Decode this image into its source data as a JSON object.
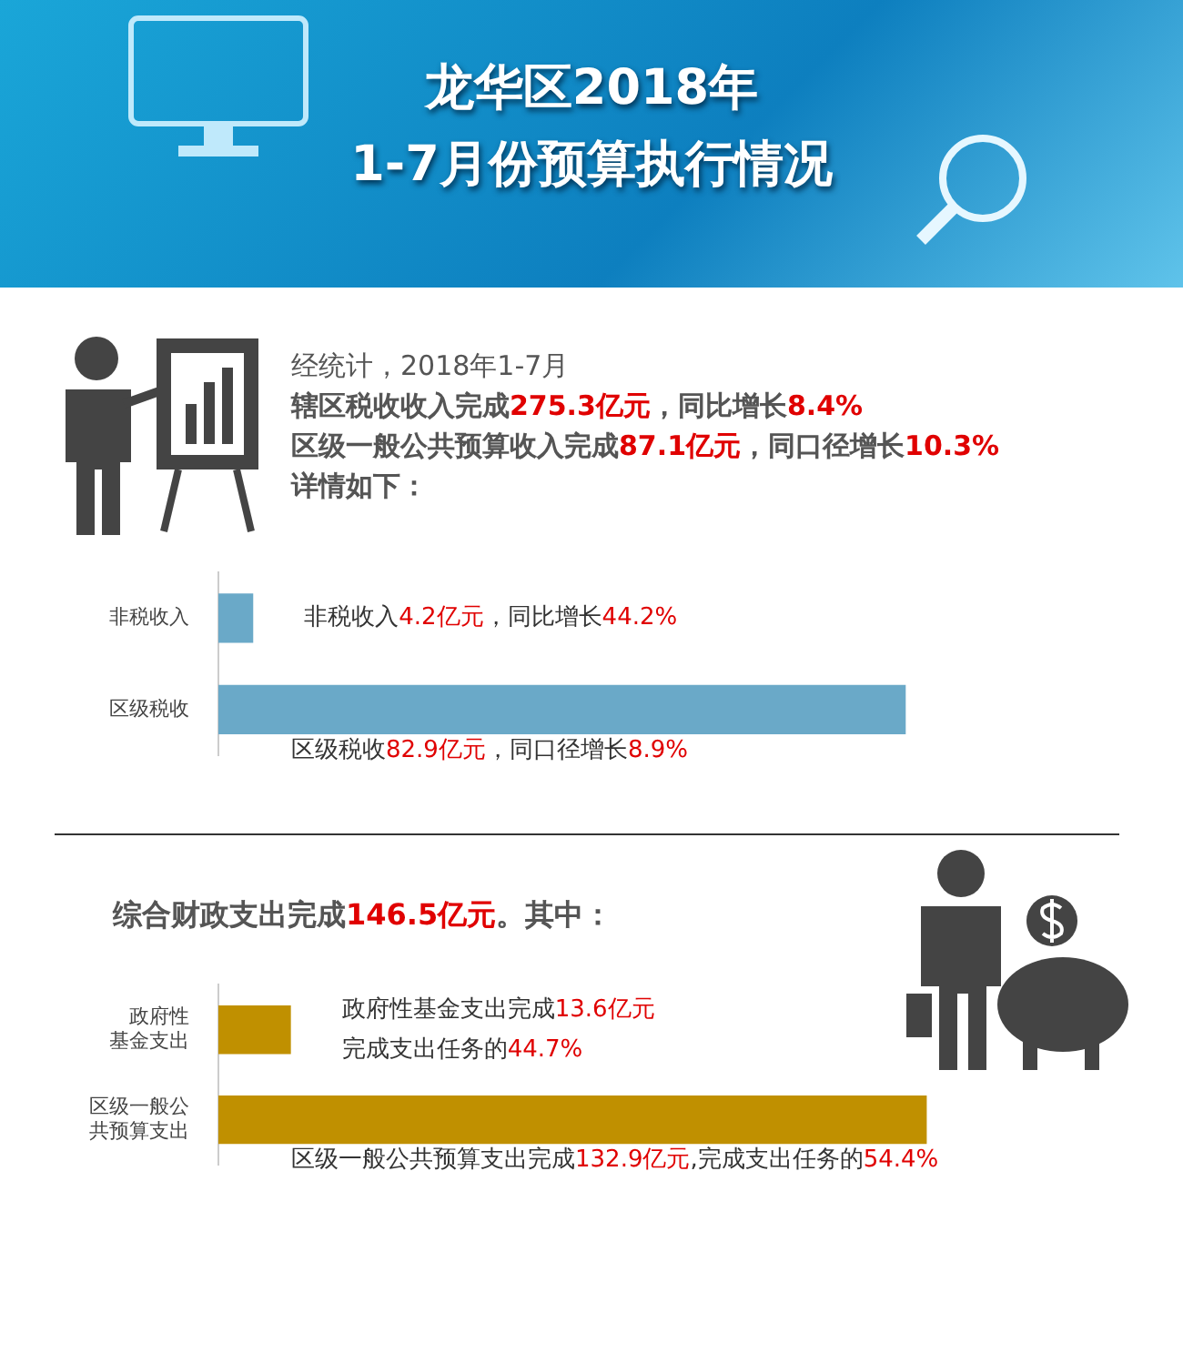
{
  "chart_data": [
    {
      "type": "other",
      "title": "龙华区2018年",
      "subtitle": "1-7月份预算执行情况",
      "annotations": [
        "经统计，2018年1-7月",
        "辖区税收收入完成275.3亿元，同比增长8.4%",
        "区级一般公共预算收入完成87.1亿元，同口径增长10.3%",
        "详情如下："
      ]
    },
    {
      "type": "bar",
      "orientation": "horizontal",
      "categories": [
        "非税收入",
        "区级税收"
      ],
      "values": [
        4.2,
        82.9
      ],
      "color": "#6aa9c8",
      "tick_labels": "y",
      "value_labels": [
        "非税收入4.2亿元，同比增长44.2%",
        "区级税收82.9亿元，同口径增长8.9%"
      ]
    },
    {
      "type": "bar",
      "orientation": "horizontal",
      "title": "综合财政支出完成146.5亿元。其中：",
      "categories": [
        "政府性基金支出",
        "区级一般公共预算支出"
      ],
      "values": [
        13.6,
        132.9
      ],
      "color": "#c09000",
      "tick_labels": "y",
      "value_labels": [
        "政府性基金支出完成13.6亿元完成支出任务的44.7%",
        "区级一般公共预算支出完成132.9亿元,完成支出任务的54.4%"
      ]
    }
  ]
}
